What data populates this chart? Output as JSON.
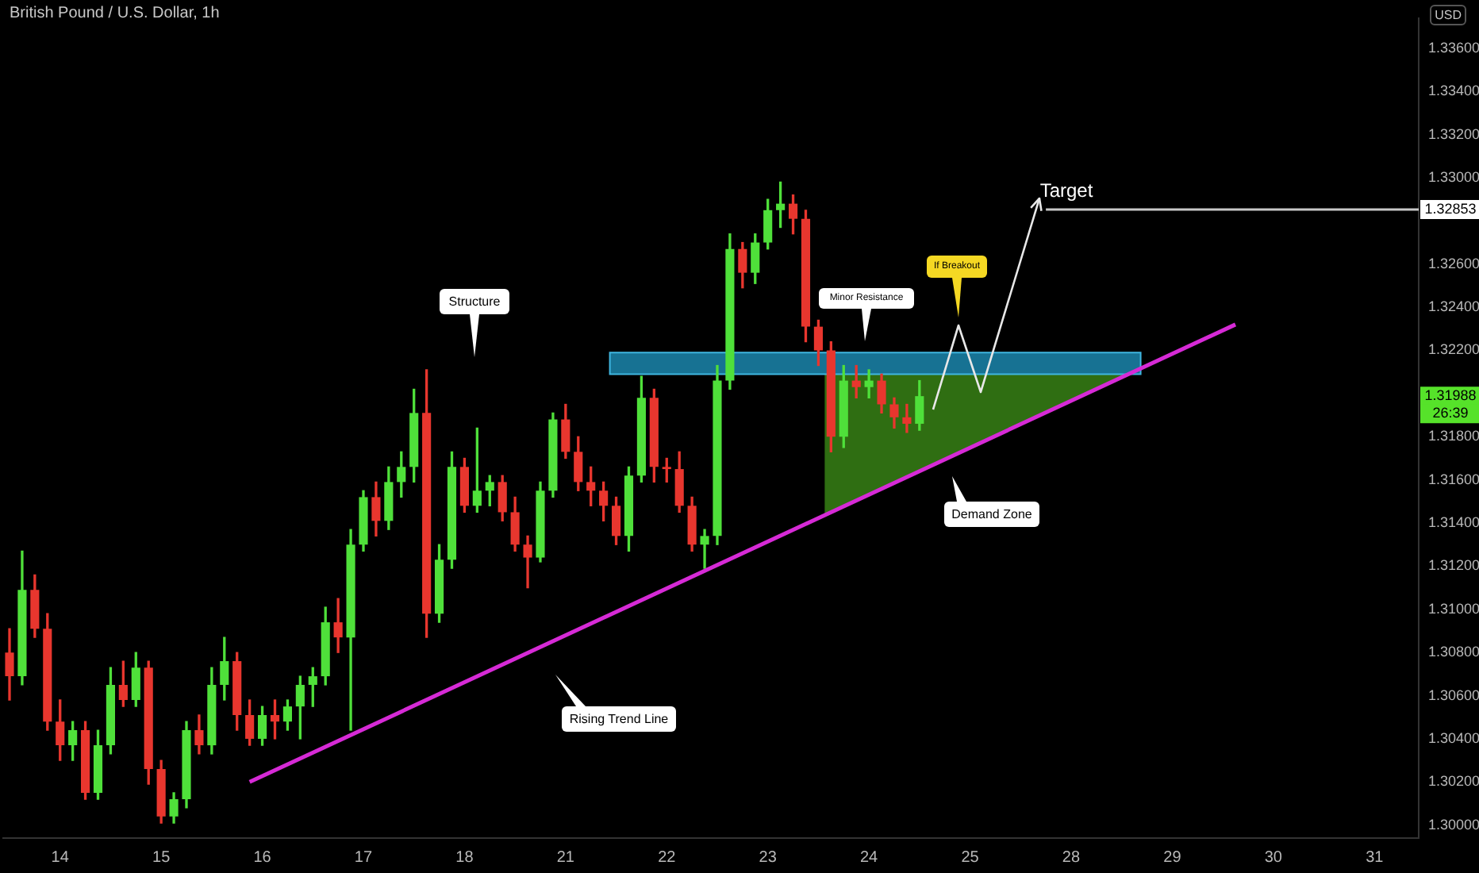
{
  "chart_data": {
    "type": "candlestick",
    "title": "British Pound / U.S. Dollar, 1h",
    "ylabel": "USD",
    "categories": [
      null,
      null,
      null,
      null,
      "14",
      null,
      null,
      null,
      null,
      null,
      null,
      null,
      "15",
      null,
      null,
      null,
      null,
      null,
      null,
      null,
      "16",
      null,
      null,
      null,
      null,
      null,
      null,
      null,
      "17",
      null,
      null,
      null,
      null,
      null,
      null,
      null,
      "18",
      null,
      null,
      null,
      null,
      null,
      null,
      null,
      "21",
      null,
      null,
      null,
      null,
      null,
      null,
      null,
      "22",
      null,
      null,
      null,
      null,
      null,
      null,
      null,
      "23",
      null,
      null,
      null,
      null,
      null,
      null,
      null,
      "24",
      null,
      null,
      null,
      null,
      null,
      null,
      null,
      "25",
      null,
      null,
      null,
      null,
      null,
      null,
      null,
      "28",
      null,
      null,
      null,
      null,
      null,
      null,
      null,
      "29",
      null,
      null,
      null,
      null,
      null,
      null,
      null,
      "30",
      null,
      null,
      null,
      null,
      null,
      null,
      null,
      "31",
      null,
      null,
      null
    ],
    "ohlc": [
      [
        1.308,
        1.3091,
        1.3058,
        1.3069
      ],
      [
        1.3069,
        1.3127,
        1.3065,
        1.3109
      ],
      [
        1.3109,
        1.3116,
        1.3087,
        1.3091
      ],
      [
        1.3091,
        1.3098,
        1.3044,
        1.3048
      ],
      [
        1.3048,
        1.3058,
        1.303,
        1.3037
      ],
      [
        1.3037,
        1.3048,
        1.303,
        1.3044
      ],
      [
        1.3044,
        1.3048,
        1.3012,
        1.3015
      ],
      [
        1.3015,
        1.3044,
        1.3012,
        1.3037
      ],
      [
        1.3037,
        1.3073,
        1.3033,
        1.3065
      ],
      [
        1.3065,
        1.3076,
        1.3055,
        1.3058
      ],
      [
        1.3058,
        1.308,
        1.3055,
        1.3073
      ],
      [
        1.3073,
        1.3076,
        1.3019,
        1.3026
      ],
      [
        1.3026,
        1.303,
        1.3001,
        1.3004
      ],
      [
        1.3004,
        1.3015,
        1.3001,
        1.3012
      ],
      [
        1.3012,
        1.3048,
        1.3008,
        1.3044
      ],
      [
        1.3044,
        1.3051,
        1.3033,
        1.3037
      ],
      [
        1.3037,
        1.3073,
        1.3033,
        1.3065
      ],
      [
        1.3065,
        1.3087,
        1.3058,
        1.3076
      ],
      [
        1.3076,
        1.308,
        1.3044,
        1.3051
      ],
      [
        1.3051,
        1.3058,
        1.3037,
        1.304
      ],
      [
        1.304,
        1.3055,
        1.3037,
        1.3051
      ],
      [
        1.3051,
        1.3058,
        1.304,
        1.3048
      ],
      [
        1.3048,
        1.3058,
        1.3044,
        1.3055
      ],
      [
        1.3055,
        1.3069,
        1.304,
        1.3065
      ],
      [
        1.3065,
        1.3073,
        1.3055,
        1.3069
      ],
      [
        1.3069,
        1.3101,
        1.3065,
        1.3094
      ],
      [
        1.3094,
        1.3105,
        1.308,
        1.3087
      ],
      [
        1.3087,
        1.3137,
        1.3044,
        1.313
      ],
      [
        1.313,
        1.3155,
        1.3127,
        1.3152
      ],
      [
        1.3152,
        1.3159,
        1.3134,
        1.3141
      ],
      [
        1.3141,
        1.3166,
        1.3137,
        1.3159
      ],
      [
        1.3159,
        1.3173,
        1.3152,
        1.3166
      ],
      [
        1.3166,
        1.3202,
        1.3159,
        1.3191
      ],
      [
        1.3191,
        1.3211,
        1.3087,
        1.3098
      ],
      [
        1.3098,
        1.313,
        1.3094,
        1.3123
      ],
      [
        1.3123,
        1.3173,
        1.3119,
        1.3166
      ],
      [
        1.3166,
        1.317,
        1.3145,
        1.3148
      ],
      [
        1.3148,
        1.3184,
        1.3145,
        1.3155
      ],
      [
        1.3155,
        1.3162,
        1.3148,
        1.3159
      ],
      [
        1.3159,
        1.3162,
        1.3141,
        1.3145
      ],
      [
        1.3145,
        1.3152,
        1.3127,
        1.313
      ],
      [
        1.313,
        1.3134,
        1.311,
        1.3124
      ],
      [
        1.3124,
        1.3159,
        1.3122,
        1.3155
      ],
      [
        1.3155,
        1.3191,
        1.3152,
        1.3188
      ],
      [
        1.3188,
        1.3195,
        1.317,
        1.3173
      ],
      [
        1.3173,
        1.318,
        1.3155,
        1.3159
      ],
      [
        1.3159,
        1.3166,
        1.3148,
        1.3155
      ],
      [
        1.3155,
        1.3159,
        1.3141,
        1.3148
      ],
      [
        1.3148,
        1.3152,
        1.313,
        1.3134
      ],
      [
        1.3134,
        1.3166,
        1.3127,
        1.3162
      ],
      [
        1.3162,
        1.3208,
        1.3159,
        1.3198
      ],
      [
        1.3198,
        1.3202,
        1.3159,
        1.3166
      ],
      [
        1.3166,
        1.317,
        1.3159,
        1.3165
      ],
      [
        1.3165,
        1.3173,
        1.3145,
        1.3148
      ],
      [
        1.3148,
        1.3152,
        1.3127,
        1.313
      ],
      [
        1.313,
        1.3137,
        1.3119,
        1.3134
      ],
      [
        1.3134,
        1.3213,
        1.313,
        1.3206
      ],
      [
        1.3206,
        1.3274,
        1.3202,
        1.3267
      ],
      [
        1.3267,
        1.327,
        1.3249,
        1.3256
      ],
      [
        1.3256,
        1.3274,
        1.3251,
        1.327
      ],
      [
        1.327,
        1.329,
        1.3267,
        1.3285
      ],
      [
        1.3285,
        1.3298,
        1.3277,
        1.3288
      ],
      [
        1.3288,
        1.3292,
        1.3274,
        1.3281
      ],
      [
        1.3281,
        1.3285,
        1.3224,
        1.3231
      ],
      [
        1.3231,
        1.3234,
        1.3213,
        1.322
      ],
      [
        1.322,
        1.3224,
        1.3173,
        1.318
      ],
      [
        1.318,
        1.3213,
        1.3175,
        1.3206
      ],
      [
        1.3206,
        1.3213,
        1.3198,
        1.3203
      ],
      [
        1.3203,
        1.3211,
        1.3198,
        1.3206
      ],
      [
        1.3206,
        1.3209,
        1.3191,
        1.3195
      ],
      [
        1.3195,
        1.3198,
        1.3184,
        1.3189
      ],
      [
        1.3189,
        1.3195,
        1.3182,
        1.3186
      ],
      [
        1.3186,
        1.3206,
        1.3183,
        1.31988
      ],
      null,
      null,
      null,
      null,
      null,
      null,
      null,
      null,
      null,
      null,
      null,
      null,
      null,
      null,
      null,
      null,
      null,
      null,
      null,
      null,
      null,
      null,
      null,
      null,
      null,
      null,
      null,
      null,
      null,
      null,
      null,
      null,
      null,
      null,
      null,
      null,
      null,
      null,
      null
    ],
    "series": [
      {
        "type": "line",
        "color": "#d62ad6",
        "values": [
          null,
          null,
          null,
          null,
          null,
          null,
          null,
          null,
          null,
          null,
          null,
          null,
          null,
          null,
          null,
          null,
          null,
          null,
          null,
          1.302,
          null,
          null,
          null,
          null,
          null,
          null,
          null,
          null,
          null,
          null,
          null,
          null,
          null,
          null,
          null,
          null,
          null,
          null,
          null,
          null,
          null,
          null,
          null,
          null,
          null,
          null,
          null,
          null,
          null,
          null,
          null,
          null,
          null,
          null,
          null,
          null,
          null,
          null,
          null,
          null,
          null,
          null,
          null,
          null,
          null,
          null,
          null,
          null,
          null,
          null,
          null,
          null,
          null,
          null,
          null,
          null,
          null,
          null,
          null,
          null,
          null,
          null,
          null,
          null,
          null,
          null,
          null,
          null,
          null,
          null,
          null,
          null,
          null,
          null,
          null,
          null,
          null,
          1.3232,
          null,
          null,
          null,
          null,
          null,
          null,
          null,
          null,
          null,
          null,
          null,
          null,
          null,
          null
        ]
      }
    ],
    "ylim": [
      1.2994,
      1.3374
    ],
    "yticks": [
      {
        "value": 1.3,
        "label": "1.30000"
      },
      {
        "value": 1.302,
        "label": "1.30200"
      },
      {
        "value": 1.304,
        "label": "1.30400"
      },
      {
        "value": 1.306,
        "label": "1.30600"
      },
      {
        "value": 1.308,
        "label": "1.30800"
      },
      {
        "value": 1.31,
        "label": "1.31000"
      },
      {
        "value": 1.312,
        "label": "1.31200"
      },
      {
        "value": 1.314,
        "label": "1.31400"
      },
      {
        "value": 1.316,
        "label": "1.31600"
      },
      {
        "value": 1.318,
        "label": "1.31800"
      },
      {
        "value": 1.322,
        "label": "1.32200"
      },
      {
        "value": 1.324,
        "label": "1.32400"
      },
      {
        "value": 1.326,
        "label": "1.32600"
      },
      {
        "value": 1.33,
        "label": "1.33000"
      },
      {
        "value": 1.332,
        "label": "1.33200"
      },
      {
        "value": 1.334,
        "label": "1.33400"
      },
      {
        "value": 1.336,
        "label": "1.33600"
      }
    ],
    "bands": [
      {
        "axis": "y",
        "from": 1.3209,
        "to": 1.3219,
        "color": "#1b86ad"
      }
    ],
    "ref_lines": [
      {
        "axis": "y",
        "value": 1.32853,
        "label": "1.32853",
        "color": "#c8c8c8"
      }
    ],
    "annotations": [
      "Structure",
      "Minor Resistance",
      "If Breakout",
      "Target",
      "Demand Zone",
      "Rising Trend Line",
      "1.31988",
      "26:39"
    ]
  }
}
